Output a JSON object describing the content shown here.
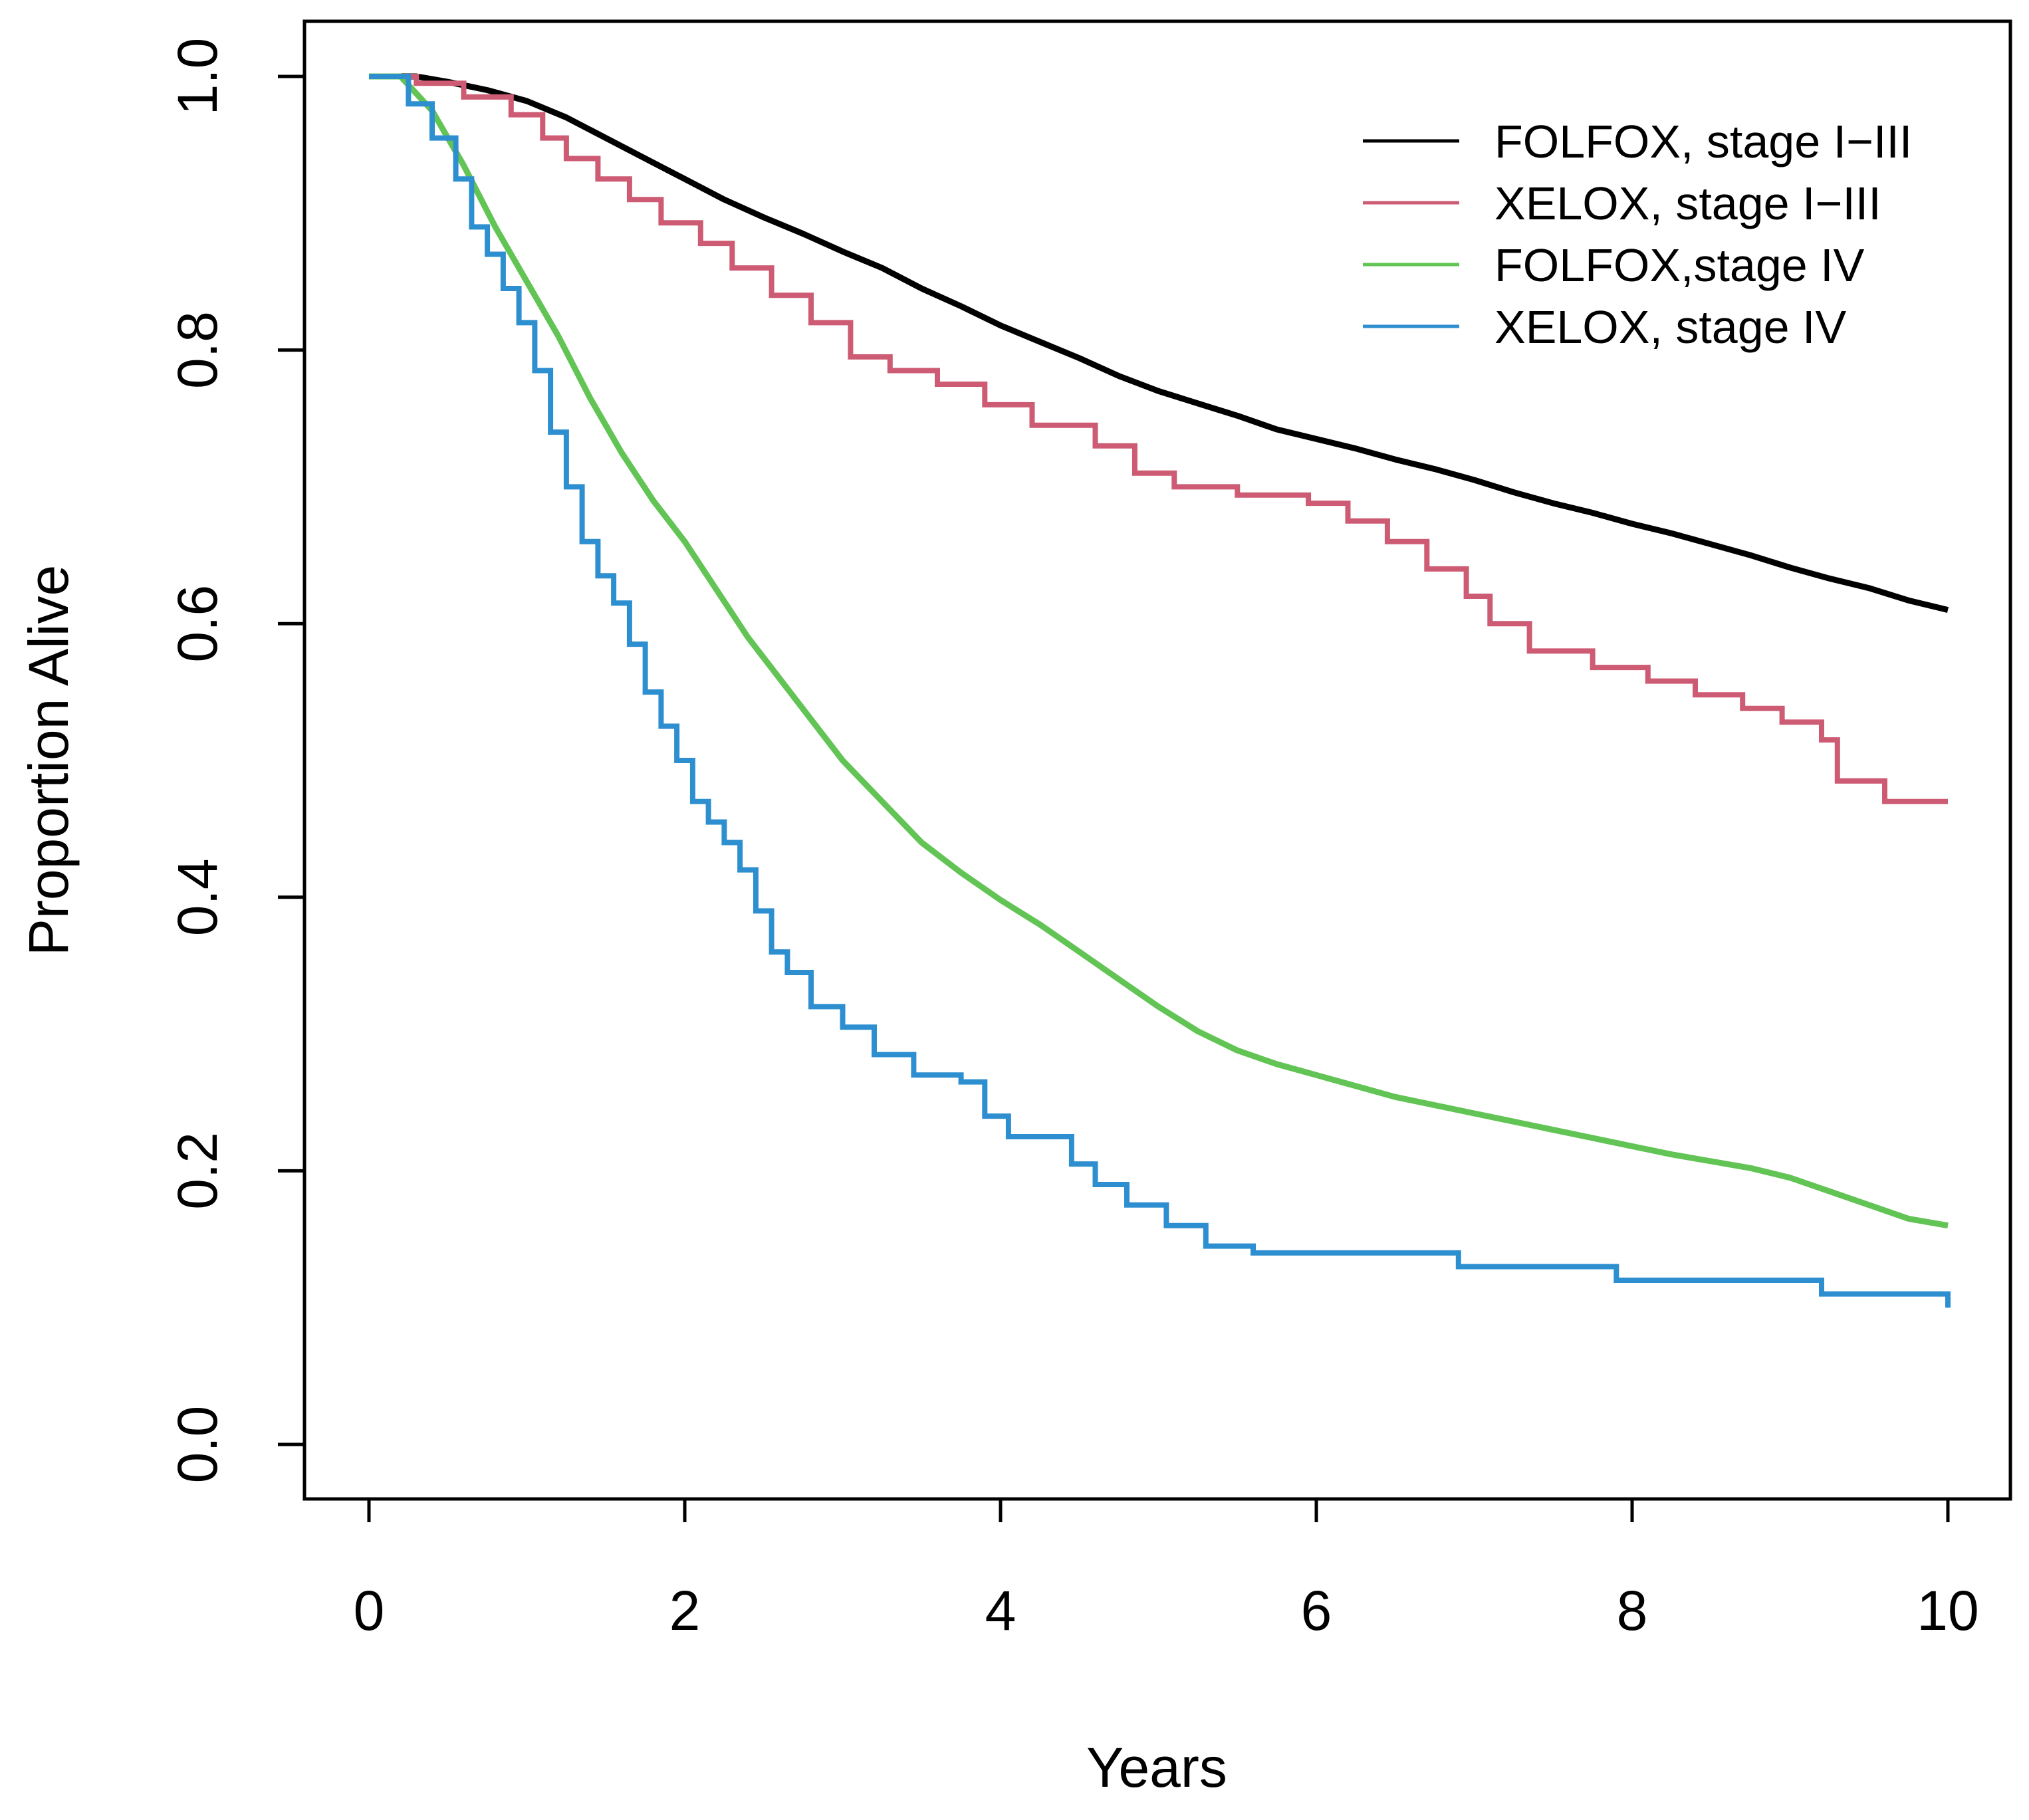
{
  "chart_data": {
    "type": "line",
    "title": "",
    "xlabel": "Years",
    "ylabel": "Proportion Alive",
    "xlim": [
      0,
      10
    ],
    "ylim": [
      0,
      1
    ],
    "x_ticks": [
      0,
      2,
      4,
      6,
      8,
      10
    ],
    "x_tick_labels": [
      "0",
      "2",
      "4",
      "6",
      "8",
      "10"
    ],
    "y_ticks": [
      0.0,
      0.2,
      0.4,
      0.6,
      0.8,
      1.0
    ],
    "y_tick_labels": [
      "0.0",
      "0.2",
      "0.4",
      "0.6",
      "0.8",
      "1.0"
    ],
    "legend_position": "top-right",
    "series": [
      {
        "name": "FOLFOX, stage I−III",
        "color": "#000000",
        "step": false,
        "x": [
          0,
          0.3,
          0.5,
          0.75,
          1,
          1.25,
          1.5,
          1.75,
          2,
          2.25,
          2.5,
          2.75,
          3,
          3.25,
          3.5,
          3.75,
          4,
          4.25,
          4.5,
          4.75,
          5,
          5.25,
          5.5,
          5.75,
          6,
          6.25,
          6.5,
          6.75,
          7,
          7.25,
          7.5,
          7.75,
          8,
          8.25,
          8.5,
          8.75,
          9,
          9.25,
          9.5,
          9.75,
          10
        ],
        "y": [
          1.0,
          1.0,
          0.996,
          0.99,
          0.982,
          0.97,
          0.955,
          0.94,
          0.925,
          0.91,
          0.897,
          0.885,
          0.872,
          0.86,
          0.845,
          0.832,
          0.818,
          0.806,
          0.794,
          0.781,
          0.77,
          0.761,
          0.752,
          0.742,
          0.735,
          0.728,
          0.72,
          0.713,
          0.705,
          0.696,
          0.688,
          0.681,
          0.673,
          0.666,
          0.658,
          0.65,
          0.641,
          0.633,
          0.626,
          0.617,
          0.61
        ]
      },
      {
        "name": "XELOX, stage I−III",
        "color": "#CD5B73",
        "step": true,
        "x": [
          0,
          0.3,
          0.6,
          0.9,
          1.1,
          1.25,
          1.45,
          1.65,
          1.85,
          2.1,
          2.3,
          2.55,
          2.8,
          3.05,
          3.3,
          3.6,
          3.9,
          4.2,
          4.6,
          4.85,
          5.1,
          5.5,
          5.95,
          6.2,
          6.45,
          6.7,
          6.95,
          7.1,
          7.35,
          7.75,
          8.1,
          8.4,
          8.7,
          8.95,
          9.2,
          9.3,
          9.6,
          10
        ],
        "y": [
          1.0,
          0.995,
          0.985,
          0.972,
          0.955,
          0.94,
          0.925,
          0.91,
          0.893,
          0.878,
          0.86,
          0.84,
          0.82,
          0.795,
          0.785,
          0.775,
          0.76,
          0.745,
          0.73,
          0.71,
          0.7,
          0.694,
          0.688,
          0.675,
          0.66,
          0.64,
          0.62,
          0.6,
          0.58,
          0.568,
          0.558,
          0.548,
          0.538,
          0.528,
          0.515,
          0.485,
          0.47,
          0.47
        ]
      },
      {
        "name": "FOLFOX,stage IV",
        "color": "#62C454",
        "step": false,
        "x": [
          0,
          0.2,
          0.4,
          0.6,
          0.8,
          1,
          1.2,
          1.4,
          1.6,
          1.8,
          2,
          2.2,
          2.4,
          2.6,
          2.8,
          3,
          3.25,
          3.5,
          3.75,
          4,
          4.25,
          4.5,
          4.75,
          5,
          5.25,
          5.5,
          5.75,
          6,
          6.25,
          6.5,
          6.75,
          7,
          7.25,
          7.5,
          7.75,
          8,
          8.25,
          8.5,
          8.75,
          9,
          9.25,
          9.5,
          9.75,
          10
        ],
        "y": [
          1.0,
          1.0,
          0.975,
          0.935,
          0.89,
          0.85,
          0.81,
          0.765,
          0.725,
          0.69,
          0.66,
          0.625,
          0.59,
          0.56,
          0.53,
          0.5,
          0.47,
          0.44,
          0.418,
          0.398,
          0.38,
          0.36,
          0.34,
          0.32,
          0.302,
          0.288,
          0.278,
          0.27,
          0.262,
          0.254,
          0.248,
          0.242,
          0.236,
          0.23,
          0.224,
          0.218,
          0.212,
          0.207,
          0.202,
          0.195,
          0.185,
          0.175,
          0.165,
          0.16
        ]
      },
      {
        "name": "XELOX, stage IV",
        "color": "#2E8FD0",
        "step": true,
        "x": [
          0,
          0.25,
          0.4,
          0.55,
          0.65,
          0.75,
          0.85,
          0.95,
          1.05,
          1.15,
          1.25,
          1.35,
          1.45,
          1.55,
          1.65,
          1.75,
          1.85,
          1.95,
          2.05,
          2.15,
          2.25,
          2.35,
          2.45,
          2.55,
          2.65,
          2.8,
          3.0,
          3.2,
          3.45,
          3.75,
          3.9,
          4.05,
          4.45,
          4.6,
          4.8,
          5.05,
          5.3,
          5.6,
          6.9,
          7.9,
          9.2,
          10
        ],
        "y": [
          1.0,
          0.98,
          0.955,
          0.925,
          0.89,
          0.87,
          0.845,
          0.82,
          0.785,
          0.74,
          0.7,
          0.66,
          0.635,
          0.615,
          0.585,
          0.55,
          0.525,
          0.5,
          0.47,
          0.455,
          0.44,
          0.42,
          0.39,
          0.36,
          0.345,
          0.32,
          0.305,
          0.285,
          0.27,
          0.265,
          0.24,
          0.225,
          0.205,
          0.19,
          0.175,
          0.16,
          0.145,
          0.14,
          0.13,
          0.12,
          0.11,
          0.1
        ]
      }
    ]
  }
}
